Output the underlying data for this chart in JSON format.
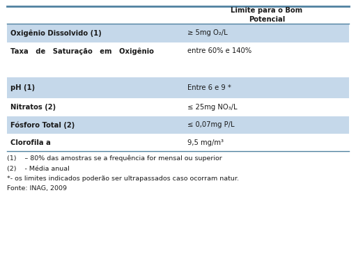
{
  "col_header": "Limite para o Bom\nPotencial",
  "rows": [
    {
      "label": "Oxigênio Dissolvido (1)",
      "value": "≥ 5mg O₂/L",
      "shaded": true,
      "bold": true
    },
    {
      "label": "Taxa   de   Saturação   em   Oxigênio",
      "value": "entre 60% e 140%",
      "shaded": false,
      "bold": true
    },
    {
      "label": "",
      "value": "",
      "shaded": false,
      "bold": false
    },
    {
      "label": "pH (1)",
      "value": "Entre 6 e 9 *",
      "shaded": true,
      "bold": true
    },
    {
      "label": "Nitratos (2)",
      "value": "≤ 25mg NO₃/L",
      "shaded": false,
      "bold": true
    },
    {
      "label": "Fósforo Total (2)",
      "value": "≤ 0,07mg P/L",
      "shaded": true,
      "bold": true
    },
    {
      "label": "Clorofila a",
      "value": "9,5 mg/m³",
      "shaded": false,
      "bold": true
    }
  ],
  "footnotes": [
    "(1)    – 80% das amostras se a frequência for mensal ou superior",
    "(2)    - Média anual",
    "*- os limites indicados poderão ser ultrapassados caso ocorram natur.",
    "Fonte: INAG, 2009"
  ],
  "shade_color": "#c5d8ea",
  "top_line_color": "#4f81a0",
  "header_line_color": "#4f81a0",
  "bg_color": "#ffffff",
  "text_color": "#1a1a1a",
  "font_size": 7.2,
  "header_font_size": 7.2,
  "footnote_font_size": 6.8
}
